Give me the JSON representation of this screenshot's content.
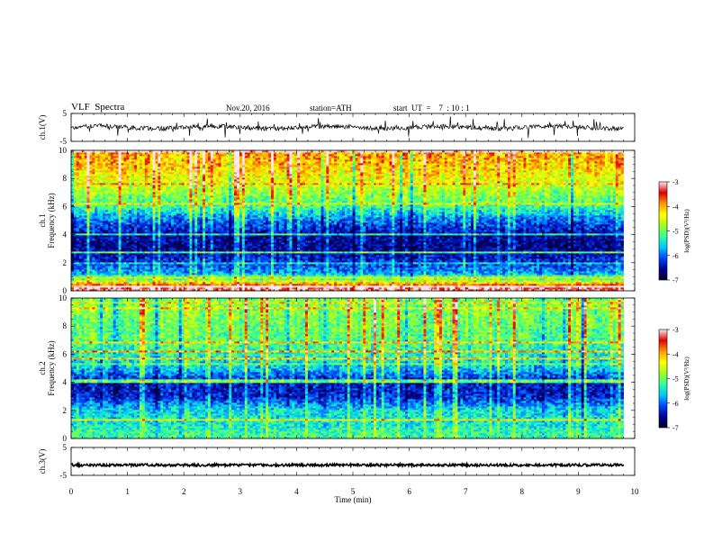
{
  "header": {
    "title": "VLF  Spectra",
    "date": "Nov.20, 2016",
    "station": "station=ATH",
    "start": "start  UT  =    7  : 10 : 1"
  },
  "colors": {
    "waveform": "#000000",
    "colormap": [
      "#000033",
      "#00008f",
      "#0044ff",
      "#00c8ff",
      "#30ffa0",
      "#a0ff20",
      "#ffff00",
      "#ff9900",
      "#e00000",
      "#ffe8e8"
    ]
  },
  "chart_data": [
    {
      "type": "line",
      "name": "ch1-waveform",
      "ylabel": "ch.1(V)",
      "ylim": [
        -5,
        5
      ],
      "yticks": [
        "5",
        "-5"
      ],
      "xlim": [
        0,
        10
      ],
      "baseline": 0,
      "spike_amplitude_max": 3.5
    },
    {
      "type": "heatmap",
      "name": "ch1-spectrogram",
      "ylabel": "ch.1\nFrequency  (kHz)",
      "ylim": [
        0,
        10
      ],
      "yticks": [
        "0",
        "2",
        "4",
        "6",
        "8",
        "10"
      ],
      "xlim": [
        0,
        9.8
      ],
      "color_scale": {
        "label": "log(PSD)(V²/Hz)",
        "range": [
          -7,
          -3
        ],
        "ticks": [
          "-3",
          "-4",
          "-5",
          "-6",
          "-7"
        ]
      },
      "band_levels": [
        {
          "freq_khz": 0.3,
          "log_psd": -3.2
        },
        {
          "freq_khz": 1.0,
          "log_psd": -5.6
        },
        {
          "freq_khz": 2.0,
          "log_psd": -6.2
        },
        {
          "freq_khz": 3.0,
          "log_psd": -6.6
        },
        {
          "freq_khz": 4.0,
          "log_psd": -6.5
        },
        {
          "freq_khz": 5.0,
          "log_psd": -6.0
        },
        {
          "freq_khz": 6.0,
          "log_psd": -5.2
        },
        {
          "freq_khz": 7.0,
          "log_psd": -4.8
        },
        {
          "freq_khz": 8.0,
          "log_psd": -4.4
        },
        {
          "freq_khz": 9.0,
          "log_psd": -4.1
        },
        {
          "freq_khz": 10.0,
          "log_psd": -3.9
        }
      ]
    },
    {
      "type": "heatmap",
      "name": "ch2-spectrogram",
      "ylabel": "ch.2\nFrequency  (kHz)",
      "ylim": [
        0,
        10
      ],
      "yticks": [
        "0",
        "2",
        "4",
        "6",
        "8",
        "10"
      ],
      "xlim": [
        0,
        9.8
      ],
      "color_scale": {
        "label": "log(PSD)(V²/Hz)",
        "range": [
          -7,
          -3
        ],
        "ticks": [
          "-3",
          "-4",
          "-5",
          "-6",
          "-7"
        ]
      },
      "band_levels": [
        {
          "freq_khz": 0.3,
          "log_psd": -5.2
        },
        {
          "freq_khz": 1.0,
          "log_psd": -5.4
        },
        {
          "freq_khz": 2.0,
          "log_psd": -5.5
        },
        {
          "freq_khz": 3.0,
          "log_psd": -6.3
        },
        {
          "freq_khz": 4.0,
          "log_psd": -6.4
        },
        {
          "freq_khz": 5.0,
          "log_psd": -5.6
        },
        {
          "freq_khz": 6.0,
          "log_psd": -5.3
        },
        {
          "freq_khz": 7.0,
          "log_psd": -5.1
        },
        {
          "freq_khz": 8.0,
          "log_psd": -5.0
        },
        {
          "freq_khz": 9.0,
          "log_psd": -4.9
        },
        {
          "freq_khz": 10.0,
          "log_psd": -4.9
        }
      ]
    },
    {
      "type": "line",
      "name": "ch3-waveform",
      "ylabel": "ch.3(V)",
      "ylim": [
        -5,
        5
      ],
      "yticks": [
        "5",
        "-5"
      ],
      "xlim": [
        0,
        10
      ],
      "baseline": -1.3
    }
  ],
  "x_axis": {
    "label": "Time  (min)",
    "xlim": [
      0,
      10
    ],
    "ticks": [
      "0",
      "1",
      "2",
      "3",
      "4",
      "5",
      "6",
      "7",
      "8",
      "9",
      "10"
    ]
  }
}
